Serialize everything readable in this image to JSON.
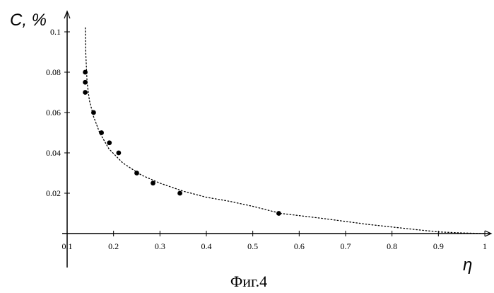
{
  "chart_data": {
    "type": "scatter",
    "ylabel": "C, %",
    "xlabel": "η",
    "caption": "Фиг.4",
    "xlim": [
      0.1,
      1.0
    ],
    "ylim": [
      0,
      0.1
    ],
    "x_ticks": [
      "0.1",
      "0.2",
      "0.3",
      "0.4",
      "0.5",
      "0.6",
      "0.7",
      "0.8",
      "0.9",
      "1"
    ],
    "y_ticks": [
      "0.02",
      "0.04",
      "0.06",
      "0.08",
      "0.1"
    ],
    "points": [
      {
        "x": 0.139,
        "y": 0.08
      },
      {
        "x": 0.139,
        "y": 0.075
      },
      {
        "x": 0.139,
        "y": 0.07
      },
      {
        "x": 0.157,
        "y": 0.06
      },
      {
        "x": 0.174,
        "y": 0.05
      },
      {
        "x": 0.191,
        "y": 0.045
      },
      {
        "x": 0.211,
        "y": 0.04
      },
      {
        "x": 0.25,
        "y": 0.03
      },
      {
        "x": 0.285,
        "y": 0.025
      },
      {
        "x": 0.343,
        "y": 0.02
      },
      {
        "x": 0.556,
        "y": 0.01
      }
    ],
    "fit_curve": [
      {
        "x": 0.139,
        "y": 0.102
      },
      {
        "x": 0.14,
        "y": 0.09
      },
      {
        "x": 0.143,
        "y": 0.075
      },
      {
        "x": 0.148,
        "y": 0.066
      },
      {
        "x": 0.157,
        "y": 0.058
      },
      {
        "x": 0.17,
        "y": 0.05
      },
      {
        "x": 0.19,
        "y": 0.042
      },
      {
        "x": 0.22,
        "y": 0.035
      },
      {
        "x": 0.26,
        "y": 0.029
      },
      {
        "x": 0.3,
        "y": 0.025
      },
      {
        "x": 0.35,
        "y": 0.021
      },
      {
        "x": 0.4,
        "y": 0.018
      },
      {
        "x": 0.45,
        "y": 0.016
      },
      {
        "x": 0.5,
        "y": 0.0135
      },
      {
        "x": 0.56,
        "y": 0.01
      },
      {
        "x": 0.65,
        "y": 0.0075
      },
      {
        "x": 0.75,
        "y": 0.0045
      },
      {
        "x": 0.85,
        "y": 0.002
      },
      {
        "x": 0.9,
        "y": 0.0008
      },
      {
        "x": 0.95,
        "y": 0.0003
      },
      {
        "x": 1.0,
        "y": 0.0
      }
    ],
    "grid": false,
    "legend": "none",
    "colors": {
      "points": "#000000",
      "curve": "#000000",
      "axes": "#000000"
    }
  }
}
